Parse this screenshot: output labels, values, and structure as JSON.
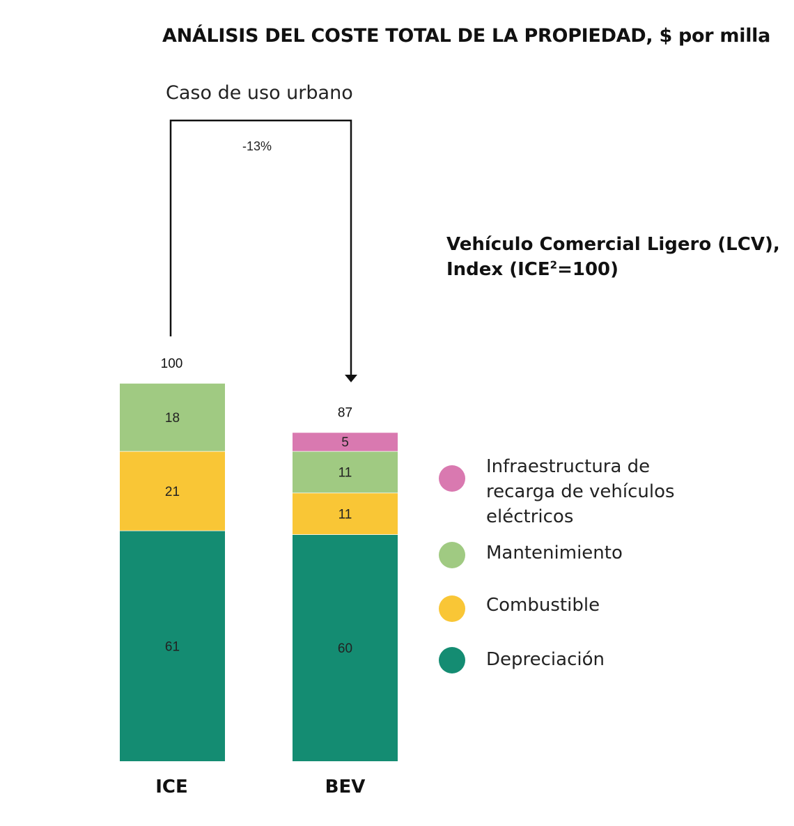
{
  "title": "ANÁLISIS DEL COSTE TOTAL DE LA PROPIEDAD, $ por milla",
  "subtitle": "Caso de uso urbano",
  "change_label": "-13%",
  "heading": {
    "line1": "Vehículo Comercial Ligero (LCV),",
    "line2_pre": "Index (ICE",
    "line2_sup": "2",
    "line2_post": "=100)"
  },
  "chart_data": {
    "type": "bar",
    "stacked": true,
    "categories": [
      "ICE",
      "BEV"
    ],
    "totals": [
      100,
      87
    ],
    "series": [
      {
        "name": "Depreciación",
        "values": [
          61,
          60
        ],
        "color": "#148c72"
      },
      {
        "name": "Combustible",
        "values": [
          21,
          11
        ],
        "color": "#f9c636"
      },
      {
        "name": "Mantenimiento",
        "values": [
          18,
          11
        ],
        "color": "#a0ca82"
      },
      {
        "name": "Infraestructura de recarga de vehículos eléctricos",
        "values": [
          0,
          5
        ],
        "color": "#d979b0"
      }
    ],
    "legend": [
      {
        "label": "Infraestructura de recarga de vehículos eléctricos",
        "color": "#d979b0"
      },
      {
        "label": "Mantenimiento",
        "color": "#a0ca82"
      },
      {
        "label": "Combustible",
        "color": "#f9c636"
      },
      {
        "label": "Depreciación",
        "color": "#148c72"
      }
    ],
    "legend_position": "right"
  }
}
